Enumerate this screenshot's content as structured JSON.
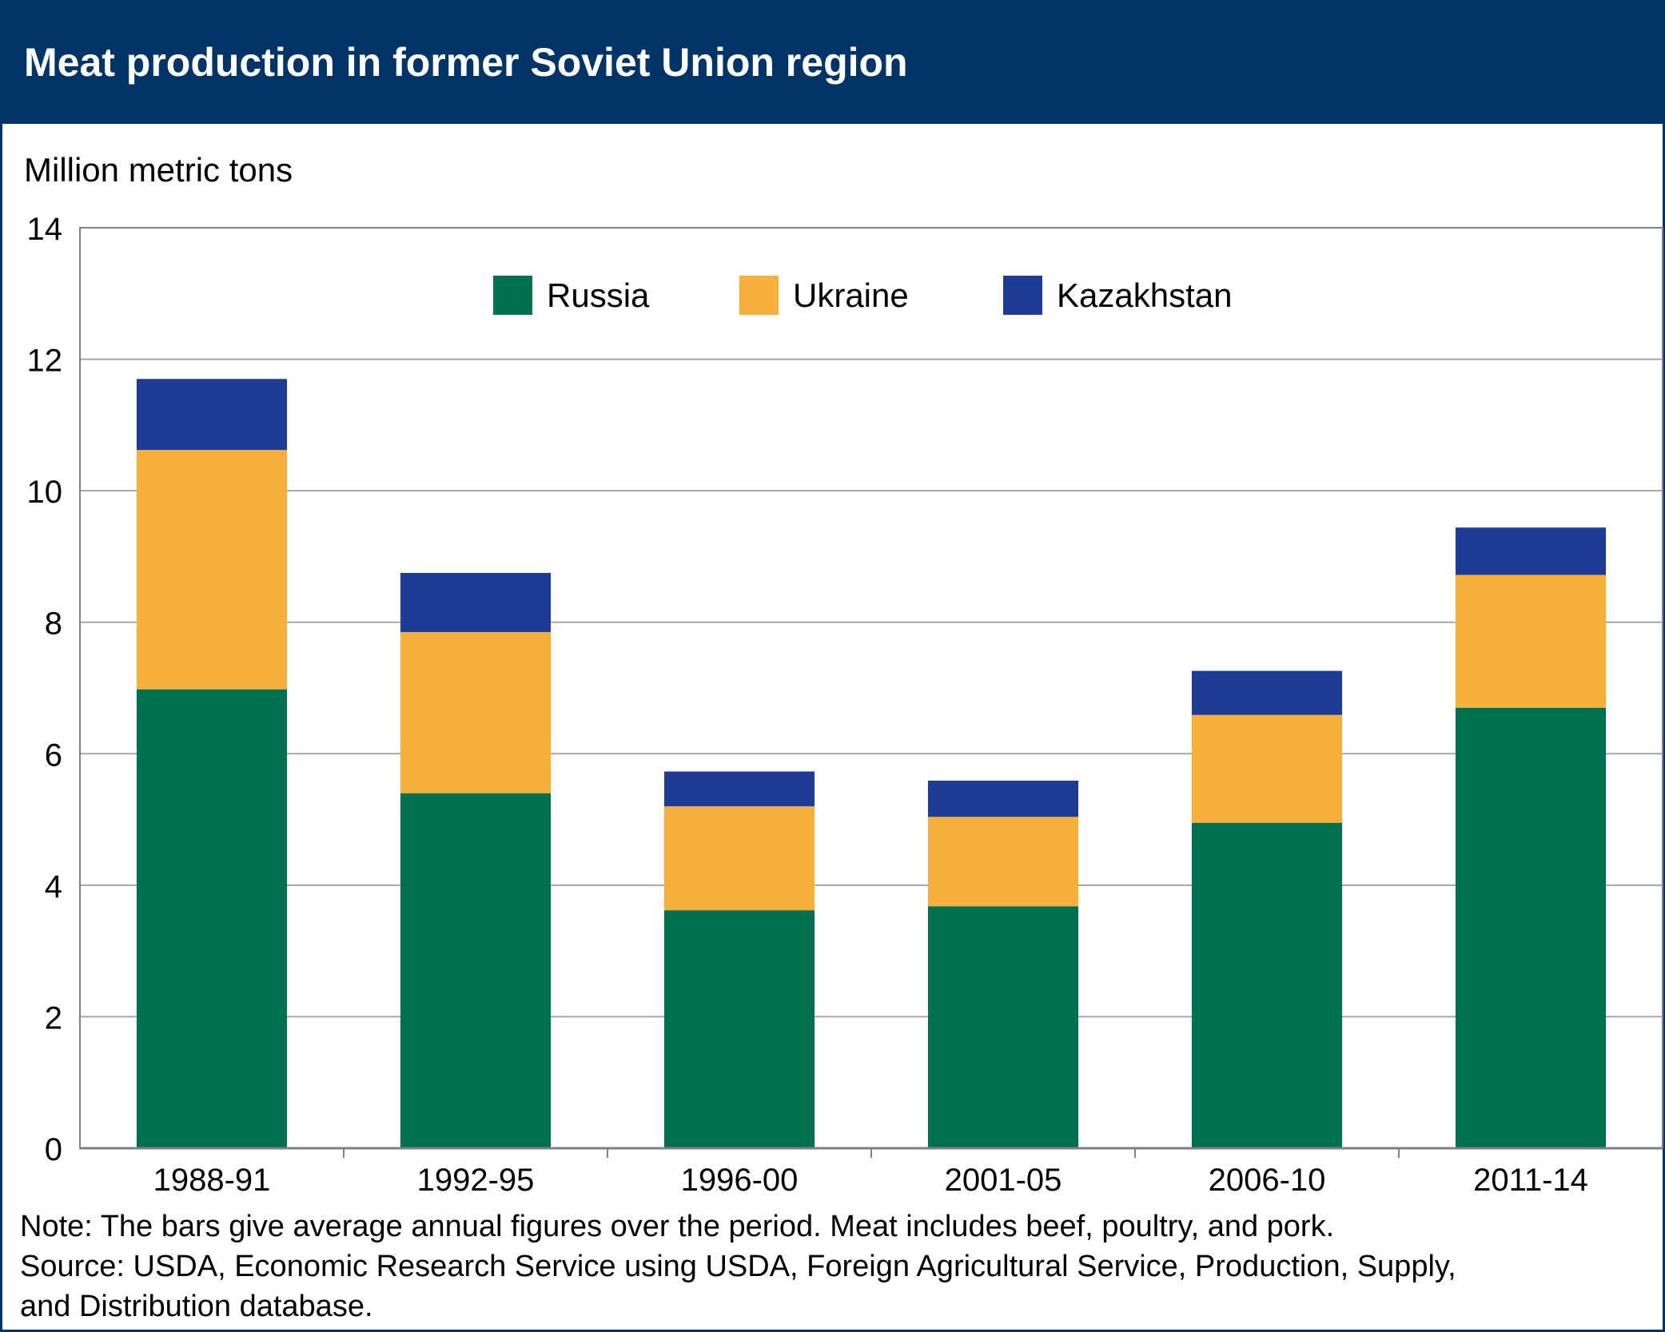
{
  "header": {
    "title": "Meat production in former Soviet Union region"
  },
  "notes": {
    "note": "Note: The bars give average annual figures over the period. Meat includes beef, poultry, and pork.",
    "source_line1": "Source: USDA, Economic Research Service using USDA, Foreign Agricultural Service, Production, Supply,",
    "source_line2": "and Distribution database."
  },
  "chart_data": {
    "type": "bar",
    "stacked": true,
    "ylabel": "Million metric tons",
    "ylim": [
      0,
      14
    ],
    "yticks": [
      0,
      2,
      4,
      6,
      8,
      10,
      12,
      14
    ],
    "grid": true,
    "legend_position": "top-center",
    "categories": [
      "1988-91",
      "1992-95",
      "1996-00",
      "2001-05",
      "2006-10",
      "2011-14"
    ],
    "series": [
      {
        "name": "Russia",
        "color": "#007050",
        "values": [
          6.98,
          5.4,
          3.62,
          3.68,
          4.95,
          6.7
        ]
      },
      {
        "name": "Ukraine",
        "color": "#F8B03C",
        "values": [
          3.64,
          2.45,
          1.58,
          1.36,
          1.64,
          2.02
        ]
      },
      {
        "name": "Kazakhstan",
        "color": "#1E3C96",
        "values": [
          1.08,
          0.9,
          0.53,
          0.55,
          0.67,
          0.72
        ]
      }
    ]
  }
}
